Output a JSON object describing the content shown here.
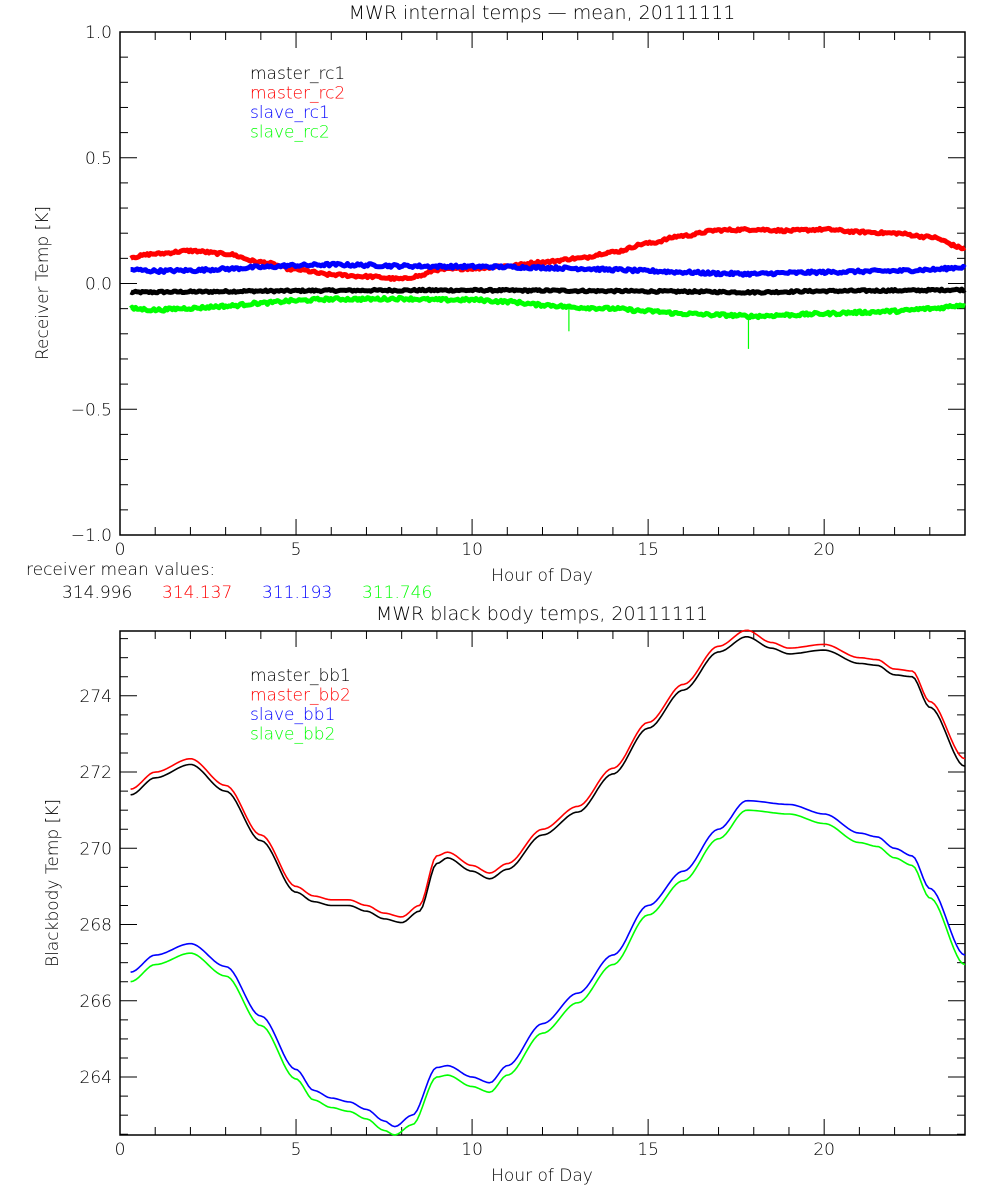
{
  "chart_data": [
    {
      "type": "line",
      "title": "MWR internal temps — mean, 20111111",
      "xlabel": "Hour of Day",
      "ylabel": "Receiver Temp [K]",
      "xlim": [
        0,
        24
      ],
      "ylim": [
        -1.0,
        1.0
      ],
      "x_ticks": [
        0,
        5,
        10,
        15,
        20
      ],
      "x_tick_labels": [
        "0",
        "5",
        "10",
        "15",
        "20"
      ],
      "x_minor_step": 1,
      "y_ticks": [
        -1.0,
        -0.5,
        0.0,
        0.5,
        1.0
      ],
      "y_tick_labels": [
        "−1.0",
        "−0.5",
        "0.0",
        "0.5",
        "1.0"
      ],
      "y_minor_step": 0.1,
      "grid": false,
      "legend_position": "top-left-inside",
      "series": [
        {
          "name": "master_rc1",
          "color": "#000000",
          "noise": 0.004,
          "x": [
            0.3,
            2,
            4,
            6,
            8,
            10,
            12,
            14,
            16,
            18,
            20,
            22,
            24
          ],
          "y": [
            -0.035,
            -0.033,
            -0.03,
            -0.028,
            -0.027,
            -0.027,
            -0.028,
            -0.03,
            -0.032,
            -0.035,
            -0.03,
            -0.028,
            -0.025
          ]
        },
        {
          "name": "master_rc2",
          "color": "#ff0000",
          "noise": 0.005,
          "x": [
            0.3,
            1,
            2,
            3,
            4,
            5,
            6,
            7,
            8,
            8.5,
            9,
            10,
            11,
            12,
            13,
            14,
            15,
            16,
            17,
            18,
            19,
            20,
            21,
            22,
            23,
            24
          ],
          "y": [
            0.105,
            0.118,
            0.13,
            0.118,
            0.085,
            0.055,
            0.035,
            0.028,
            0.018,
            0.03,
            0.055,
            0.06,
            0.07,
            0.085,
            0.1,
            0.125,
            0.16,
            0.19,
            0.212,
            0.215,
            0.21,
            0.215,
            0.205,
            0.2,
            0.185,
            0.14
          ]
        },
        {
          "name": "slave_rc1",
          "color": "#0000ff",
          "noise": 0.006,
          "x": [
            0.3,
            1,
            2,
            3,
            4,
            5,
            6,
            7,
            8,
            9,
            10,
            11,
            12,
            13,
            14,
            15,
            16,
            17,
            18,
            19,
            20,
            21,
            22,
            23,
            24
          ],
          "y": [
            0.055,
            0.05,
            0.052,
            0.058,
            0.065,
            0.072,
            0.075,
            0.073,
            0.07,
            0.068,
            0.067,
            0.066,
            0.063,
            0.06,
            0.055,
            0.05,
            0.045,
            0.04,
            0.038,
            0.042,
            0.045,
            0.048,
            0.05,
            0.055,
            0.065
          ]
        },
        {
          "name": "slave_rc2",
          "color": "#00ff00",
          "noise": 0.006,
          "x": [
            0.3,
            1,
            2,
            3,
            4,
            5,
            6,
            7,
            8,
            9,
            10,
            11,
            12,
            13,
            14,
            15,
            16,
            17,
            18,
            19,
            20,
            21,
            22,
            23,
            24
          ],
          "y": [
            -0.1,
            -0.105,
            -0.098,
            -0.09,
            -0.078,
            -0.068,
            -0.062,
            -0.062,
            -0.06,
            -0.065,
            -0.065,
            -0.072,
            -0.085,
            -0.095,
            -0.1,
            -0.11,
            -0.12,
            -0.125,
            -0.13,
            -0.125,
            -0.12,
            -0.115,
            -0.11,
            -0.1,
            -0.085
          ],
          "spikes": [
            {
              "x": 12.75,
              "y": -0.19
            },
            {
              "x": 17.85,
              "y": -0.26
            }
          ]
        }
      ],
      "annotations": {
        "label": "receiver mean values:",
        "values": [
          {
            "text": "314.996",
            "color": "#000000"
          },
          {
            "text": "314.137",
            "color": "#ff0000"
          },
          {
            "text": "311.193",
            "color": "#0000ff"
          },
          {
            "text": "311.746",
            "color": "#00ff00"
          }
        ]
      }
    },
    {
      "type": "line",
      "title": "MWR black body temps, 20111111",
      "xlabel": "Hour of Day",
      "ylabel": "Blackbody Temp [K]",
      "xlim": [
        0,
        24
      ],
      "ylim": [
        262.48,
        275.7
      ],
      "x_ticks": [
        0,
        5,
        10,
        15,
        20
      ],
      "x_tick_labels": [
        "0",
        "5",
        "10",
        "15",
        "20"
      ],
      "x_minor_step": 1,
      "y_ticks": [
        264,
        266,
        268,
        270,
        272,
        274
      ],
      "y_tick_labels": [
        "264",
        "266",
        "268",
        "270",
        "272",
        "274"
      ],
      "y_minor_step": 0.5,
      "grid": false,
      "legend_position": "top-left-inside",
      "series": [
        {
          "name": "master_bb1",
          "color": "#000000",
          "x": [
            0.3,
            1,
            2,
            3,
            4,
            5,
            5.5,
            6,
            6.5,
            7,
            7.5,
            8,
            8.5,
            9,
            9.3,
            10,
            10.5,
            11,
            12,
            13,
            14,
            15,
            16,
            17,
            17.8,
            18.5,
            19,
            20,
            21,
            21.5,
            22,
            22.5,
            23,
            24
          ],
          "y": [
            271.4,
            271.85,
            272.2,
            271.5,
            270.2,
            268.85,
            268.6,
            268.5,
            268.5,
            268.35,
            268.15,
            268.05,
            268.35,
            269.6,
            269.75,
            269.4,
            269.2,
            269.45,
            270.35,
            270.95,
            271.95,
            273.15,
            274.15,
            275.15,
            275.55,
            275.25,
            275.1,
            275.2,
            274.85,
            274.8,
            274.55,
            274.5,
            273.7,
            272.15
          ]
        },
        {
          "name": "master_bb2",
          "color": "#ff0000",
          "x": [
            0.3,
            1,
            2,
            3,
            4,
            5,
            5.5,
            6,
            6.5,
            7,
            7.5,
            8,
            8.5,
            9,
            9.3,
            10,
            10.5,
            11,
            12,
            13,
            14,
            15,
            16,
            17,
            17.8,
            18.5,
            19,
            20,
            21,
            21.5,
            22,
            22.5,
            23,
            24
          ],
          "y": [
            271.55,
            272.0,
            272.35,
            271.65,
            270.35,
            269.0,
            268.75,
            268.65,
            268.65,
            268.5,
            268.3,
            268.2,
            268.5,
            269.8,
            269.9,
            269.55,
            269.35,
            269.6,
            270.5,
            271.1,
            272.1,
            273.3,
            274.3,
            275.3,
            275.72,
            275.4,
            275.25,
            275.35,
            275.0,
            274.95,
            274.7,
            274.65,
            273.85,
            272.35
          ]
        },
        {
          "name": "slave_bb1",
          "color": "#0000ff",
          "x": [
            0.3,
            1,
            2,
            3,
            4,
            5,
            5.5,
            6,
            6.5,
            7,
            7.5,
            7.8,
            8.3,
            9,
            9.3,
            10,
            10.5,
            11,
            12,
            13,
            14,
            15,
            16,
            17,
            17.8,
            19,
            20,
            21,
            21.5,
            22,
            22.5,
            23,
            24
          ],
          "y": [
            266.75,
            267.2,
            267.5,
            266.9,
            265.6,
            264.2,
            263.65,
            263.45,
            263.35,
            263.15,
            262.85,
            262.7,
            263.0,
            264.25,
            264.3,
            264.0,
            263.85,
            264.3,
            265.4,
            266.2,
            267.2,
            268.5,
            269.4,
            270.5,
            271.25,
            271.15,
            270.9,
            270.4,
            270.3,
            270.0,
            269.8,
            268.95,
            267.2
          ]
        },
        {
          "name": "slave_bb2",
          "color": "#00ff00",
          "x": [
            0.3,
            1,
            2,
            3,
            4,
            5,
            5.5,
            6,
            6.5,
            7,
            7.5,
            7.8,
            8.3,
            9,
            9.3,
            10,
            10.5,
            11,
            12,
            13,
            14,
            15,
            16,
            17,
            17.8,
            19,
            20,
            21,
            21.5,
            22,
            22.5,
            23,
            24
          ],
          "y": [
            266.5,
            266.95,
            267.25,
            266.65,
            265.35,
            263.95,
            263.4,
            263.2,
            263.1,
            262.9,
            262.6,
            262.48,
            262.75,
            264.0,
            264.05,
            263.75,
            263.6,
            264.05,
            265.15,
            265.95,
            266.95,
            268.25,
            269.15,
            270.25,
            271.0,
            270.9,
            270.65,
            270.15,
            270.05,
            269.75,
            269.55,
            268.7,
            266.95
          ]
        }
      ]
    }
  ]
}
